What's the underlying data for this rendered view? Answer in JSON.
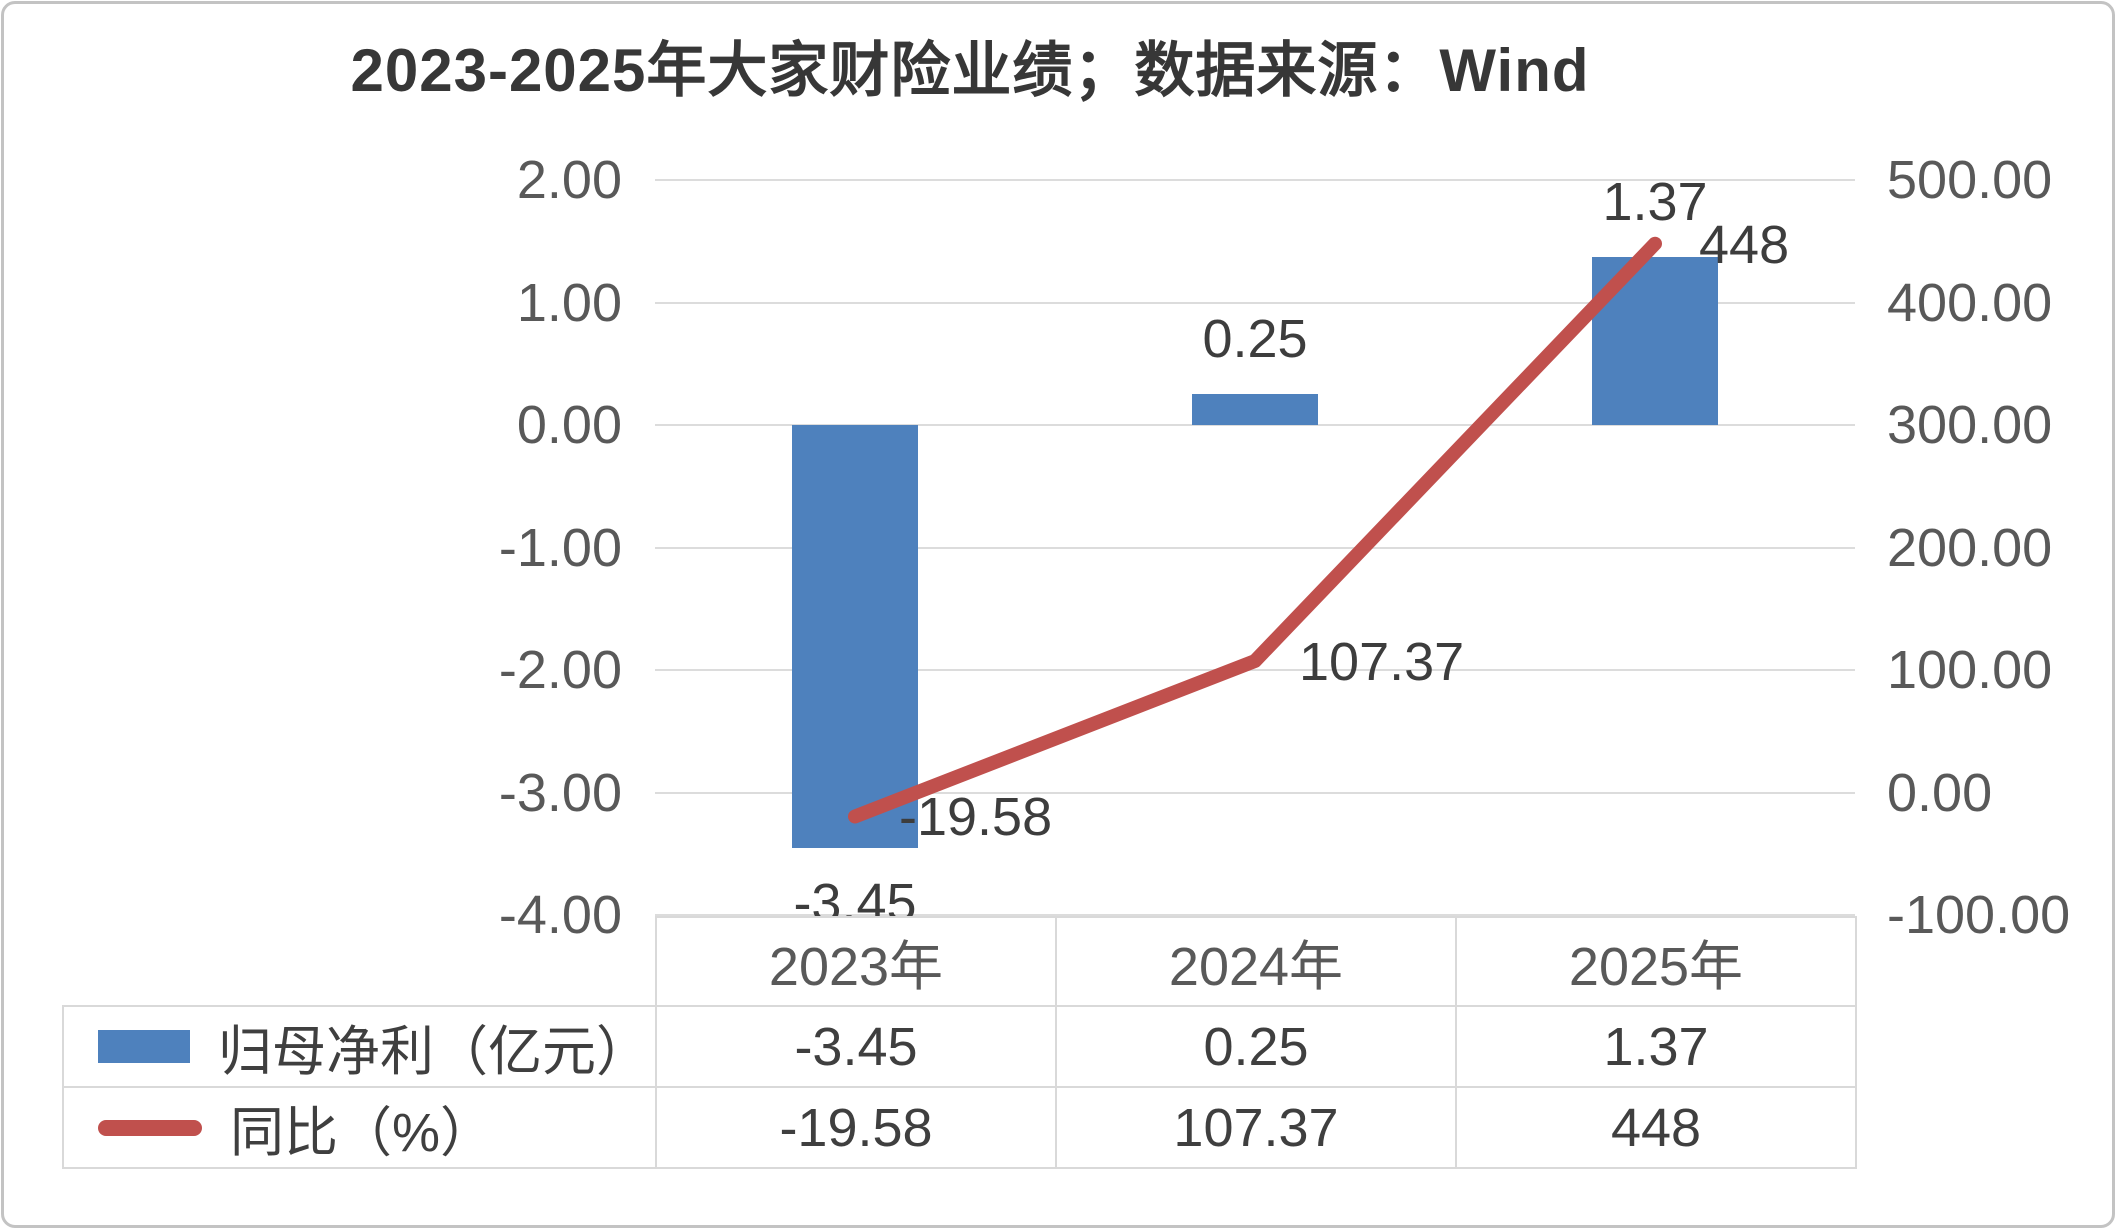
{
  "chart_data": {
    "type": "combo",
    "title": "2023-2025年大家财险业绩；数据来源：Wind",
    "categories": [
      "2023年",
      "2024年",
      "2025年"
    ],
    "series": [
      {
        "name": "归母净利（亿元）",
        "type": "bar",
        "axis": "left",
        "color": "#4e81bd",
        "values": [
          -3.45,
          0.25,
          1.37
        ],
        "labels": [
          "-3.45",
          "0.25",
          "1.37"
        ]
      },
      {
        "name": "同比（%）",
        "type": "line",
        "axis": "right",
        "color": "#c0504d",
        "values": [
          -19.58,
          107.37,
          448
        ],
        "labels": [
          "-19.58",
          "107.37",
          "448"
        ]
      }
    ],
    "left_axis": {
      "min": -4,
      "max": 2,
      "ticks": [
        "2.00",
        "1.00",
        "0.00",
        "-1.00",
        "-2.00",
        "-3.00",
        "-4.00"
      ]
    },
    "right_axis": {
      "min": -100,
      "max": 500,
      "ticks": [
        "500.00",
        "400.00",
        "300.00",
        "200.00",
        "100.00",
        "0.00",
        "-100.00"
      ]
    },
    "grid": true,
    "legend_position": "bottom-table-left",
    "colors": {
      "bar": "#4e81bd",
      "line": "#c0504d",
      "gridline": "#dcdcdc",
      "tick_text": "#595959",
      "label_text": "#3d3d3d",
      "table_border": "#d9d9d9",
      "title_text": "#373737",
      "background": "#ffffff"
    }
  }
}
